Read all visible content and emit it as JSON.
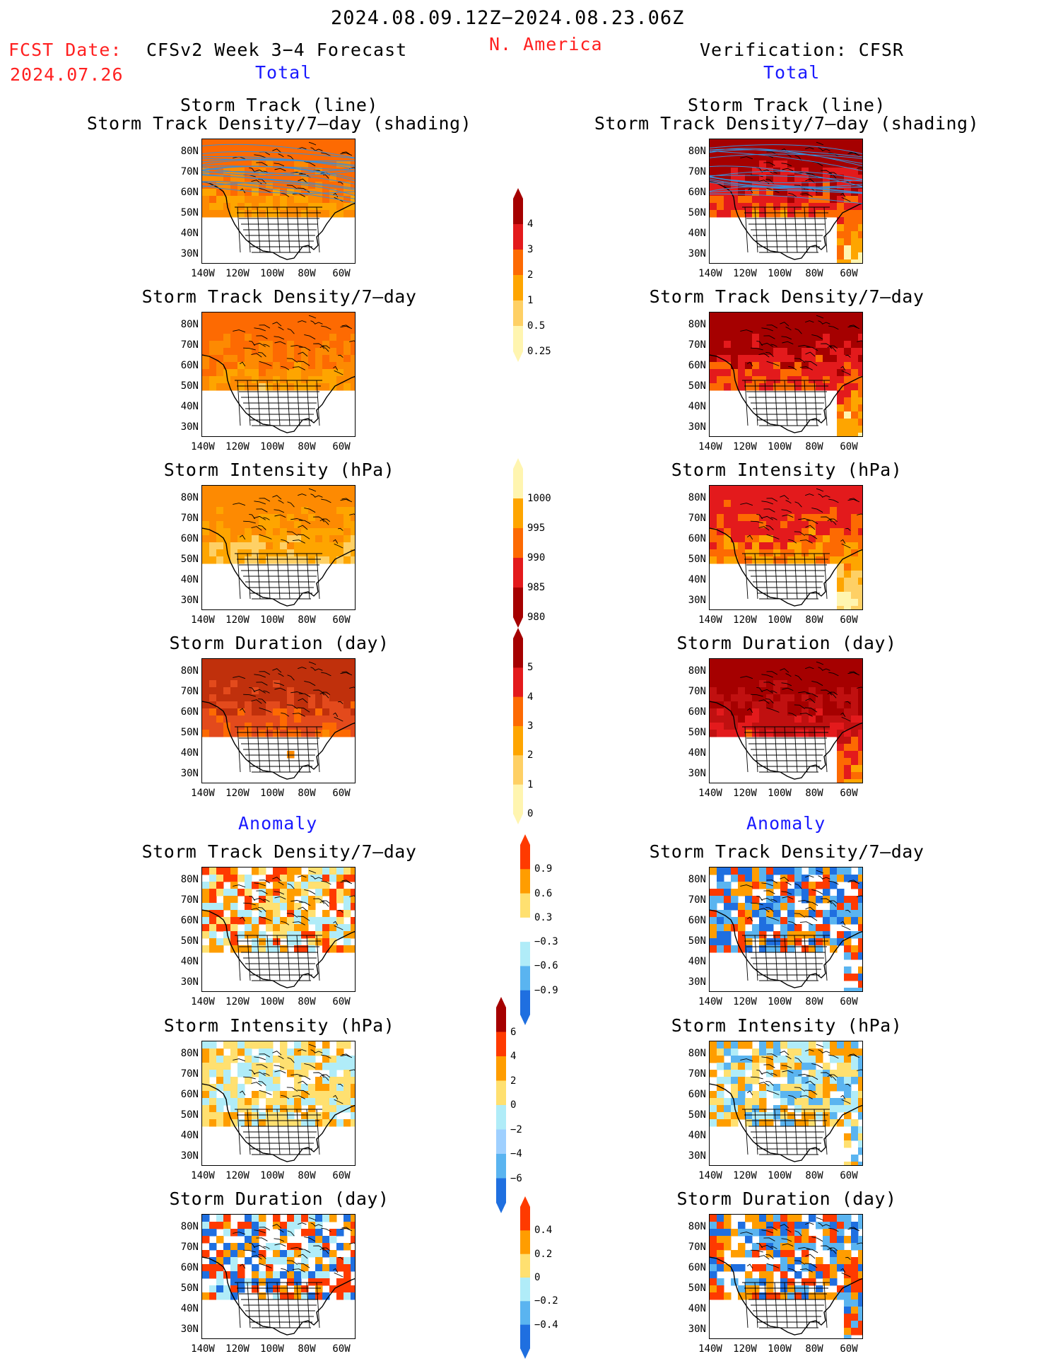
{
  "header": {
    "period": "2024.08.09.12Z−2024.08.23.06Z",
    "region": "N. America",
    "fcst_label": "FCST Date:",
    "fcst_date": "2024.07.26",
    "left_title": "CFSv2 Week 3−4 Forecast",
    "right_title": "Verification: CFSR",
    "total_left": "Total",
    "total_right": "Total",
    "anomaly_left": "Anomaly",
    "anomaly_right": "Anomaly"
  },
  "axes": {
    "lat_ticks": [
      "80N",
      "70N",
      "60N",
      "50N",
      "40N",
      "30N"
    ],
    "lon_ticks": [
      "140W",
      "120W",
      "100W",
      "80W",
      "60W"
    ]
  },
  "panels": [
    {
      "id": "fc-track",
      "title": "Storm Track (line)",
      "title2": "Storm Track Density/7–day (shading)",
      "scheme": "warm",
      "col": 0
    },
    {
      "id": "ob-track",
      "title": "Storm Track (line)",
      "title2": "Storm Track Density/7–day (shading)",
      "scheme": "warm-hot",
      "col": 1
    },
    {
      "id": "fc-dens",
      "title": "Storm Track Density/7–day",
      "title2": "",
      "scheme": "warm",
      "col": 0
    },
    {
      "id": "ob-dens",
      "title": "Storm Track Density/7–day",
      "title2": "",
      "scheme": "warm-hot",
      "col": 1
    },
    {
      "id": "fc-int",
      "title": "Storm Intensity (hPa)",
      "title2": "",
      "scheme": "pale",
      "col": 0
    },
    {
      "id": "ob-int",
      "title": "Storm Intensity (hPa)",
      "title2": "",
      "scheme": "pale-orange",
      "col": 1
    },
    {
      "id": "fc-dur",
      "title": "Storm Duration (day)",
      "title2": "",
      "scheme": "orange",
      "col": 0
    },
    {
      "id": "ob-dur",
      "title": "Storm Duration (day)",
      "title2": "",
      "scheme": "red",
      "col": 1
    },
    {
      "id": "fc-adens",
      "title": "Storm Track Density/7–day",
      "title2": "",
      "scheme": "anom-light",
      "col": 0
    },
    {
      "id": "ob-adens",
      "title": "Storm Track Density/7–day",
      "title2": "",
      "scheme": "anom-strong",
      "col": 1
    },
    {
      "id": "fc-aint",
      "title": "Storm Intensity (hPa)",
      "title2": "",
      "scheme": "anom-int",
      "col": 0
    },
    {
      "id": "ob-aint",
      "title": "Storm Intensity (hPa)",
      "title2": "",
      "scheme": "anom-int2",
      "col": 1
    },
    {
      "id": "fc-adur",
      "title": "Storm Duration (day)",
      "title2": "",
      "scheme": "anom-dur",
      "col": 0
    },
    {
      "id": "ob-adur",
      "title": "Storm Duration (day)",
      "title2": "",
      "scheme": "anom-dur2",
      "col": 1
    }
  ],
  "colorbars": [
    {
      "id": "cb-density",
      "labels": [
        "4",
        "3",
        "2",
        "1",
        "0.5",
        "0.25"
      ],
      "colors": [
        "#a50000",
        "#e31a1c",
        "#fd6a02",
        "#fea500",
        "#fed065",
        "#fff5b0"
      ]
    },
    {
      "id": "cb-intensity",
      "labels": [
        "1000",
        "995",
        "990",
        "985",
        "980"
      ],
      "colors": [
        "#fff5b0",
        "#fea500",
        "#fd6a02",
        "#e31a1c",
        "#a50000"
      ]
    },
    {
      "id": "cb-duration",
      "labels": [
        "5",
        "4",
        "3",
        "2",
        "1",
        "0"
      ],
      "colors": [
        "#a50000",
        "#e31a1c",
        "#fd6a02",
        "#fea500",
        "#fed065",
        "#fff5b0"
      ]
    },
    {
      "id": "cb-anom-density",
      "labels": [
        "0.9",
        "0.6",
        "0.3",
        "−0.3",
        "−0.6",
        "−0.9"
      ],
      "colors": [
        "#ff3a00",
        "#ff9d00",
        "#ffe070",
        "#ffffff",
        "#b0ecf8",
        "#5ab4f0",
        "#1f6fe0"
      ]
    },
    {
      "id": "cb-anom-intensity",
      "labels": [
        "6",
        "4",
        "2",
        "0",
        "−2",
        "−4",
        "−6"
      ],
      "colors": [
        "#a50000",
        "#ff3a00",
        "#ff9d00",
        "#ffe070",
        "#b0ecf8",
        "#9fd0ff",
        "#5ab4f0",
        "#1f6fe0"
      ]
    },
    {
      "id": "cb-anom-duration",
      "labels": [
        "0.4",
        "0.2",
        "0",
        "−0.2",
        "−0.4"
      ],
      "colors": [
        "#ff3a00",
        "#ff9d00",
        "#ffe070",
        "#b0ecf8",
        "#5ab4f0",
        "#1f6fe0"
      ]
    }
  ]
}
